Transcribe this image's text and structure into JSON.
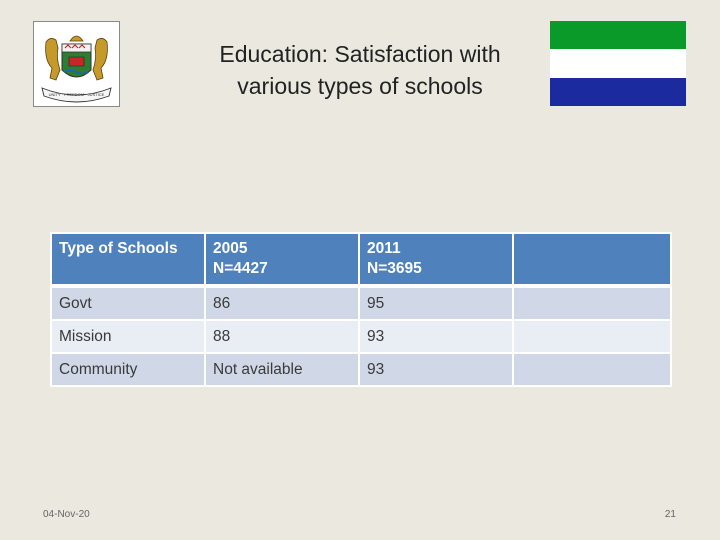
{
  "slide": {
    "title_line1": "Education: Satisfaction with",
    "title_line2": "various types of schools",
    "date": "04-Nov-20",
    "page_number": "21"
  },
  "coat_of_arms": {
    "motto": "UNITY · FREEDOM · JUSTICE"
  },
  "flag": {
    "colors": [
      "#0a9a2a",
      "#ffffff",
      "#1c2aa0"
    ]
  },
  "table": {
    "headers": [
      {
        "line1": "Type of Schools",
        "line2": ""
      },
      {
        "line1": "2005",
        "line2": "N=4427"
      },
      {
        "line1": "2011",
        "line2": "N=3695"
      },
      {
        "line1": "",
        "line2": ""
      }
    ],
    "rows": [
      [
        "Govt",
        "86",
        "95",
        ""
      ],
      [
        "Mission",
        "88",
        "93",
        ""
      ],
      [
        "Community",
        "Not available",
        "93",
        ""
      ]
    ]
  }
}
